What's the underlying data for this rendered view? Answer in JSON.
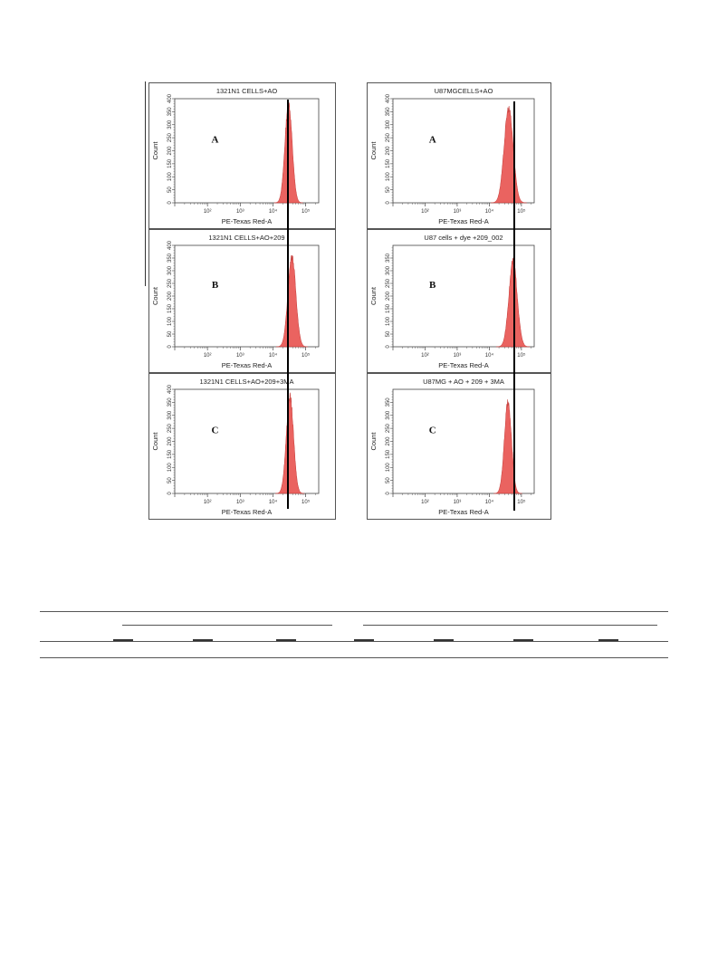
{
  "colors": {
    "fill": "#e8524f",
    "fill_light": "#f4a8a4",
    "frame": "#555555",
    "cursor": "#000000"
  },
  "chart_data": [
    {
      "type": "area",
      "title": "1321N1 CELLS+AO",
      "panel_letter": "A",
      "xlabel": "PE-Texas Red-A",
      "ylabel": "Count",
      "xscale": "log",
      "xlim": [
        10,
        250000
      ],
      "ylim": [
        0,
        400
      ],
      "xticks": [
        "10²",
        "10³",
        "10⁴",
        "10⁵"
      ],
      "yticks": [
        "0",
        "50",
        "100",
        "150",
        "200",
        "250",
        "300",
        "350",
        "400"
      ],
      "peak": {
        "center": 30000,
        "height": 390,
        "width_log": 0.11
      }
    },
    {
      "type": "area",
      "title": "1321N1 CELLS+AO+209",
      "panel_letter": "B",
      "xlabel": "PE-Texas Red-A",
      "ylabel": "Count",
      "xscale": "log",
      "xlim": [
        10,
        250000
      ],
      "ylim": [
        0,
        400
      ],
      "xticks": [
        "10²",
        "10³",
        "10⁴",
        "10⁵"
      ],
      "yticks": [
        "0",
        "50",
        "100",
        "150",
        "200",
        "250",
        "300",
        "350",
        "400"
      ],
      "peak": {
        "center": 38000,
        "height": 365,
        "width_log": 0.12
      }
    },
    {
      "type": "area",
      "title": "1321N1 CELLS+AO+209+3MA",
      "panel_letter": "C",
      "xlabel": "PE-Texas Red-A",
      "ylabel": "Count",
      "xscale": "log",
      "xlim": [
        10,
        250000
      ],
      "ylim": [
        0,
        400
      ],
      "xticks": [
        "10²",
        "10³",
        "10⁴",
        "10⁵"
      ],
      "yticks": [
        "0",
        "50",
        "100",
        "150",
        "200",
        "250",
        "300",
        "350",
        "400"
      ],
      "peak": {
        "center": 33000,
        "height": 380,
        "width_log": 0.11
      }
    },
    {
      "type": "area",
      "title": "U87MGCELLS+AO",
      "panel_letter": "A",
      "xlabel": "PE-Texas Red-A",
      "ylabel": "Count",
      "xscale": "log",
      "xlim": [
        10,
        250000
      ],
      "ylim": [
        0,
        400
      ],
      "xticks": [
        "10²",
        "10³",
        "10⁴",
        "10⁵"
      ],
      "yticks": [
        "0",
        "50",
        "100",
        "150",
        "200",
        "250",
        "300",
        "350",
        "400"
      ],
      "peak": {
        "center": 40000,
        "height": 370,
        "width_log": 0.14
      }
    },
    {
      "type": "area",
      "title": "U87 cells + dye +209_002",
      "panel_letter": "B",
      "xlabel": "PE-Texas Red-A",
      "ylabel": "Count",
      "xscale": "log",
      "xlim": [
        10,
        250000
      ],
      "ylim": [
        0,
        400
      ],
      "xticks": [
        "10²",
        "10³",
        "10⁴",
        "10⁵"
      ],
      "yticks": [
        "0",
        "50",
        "100",
        "150",
        "200",
        "250",
        "300",
        "350"
      ],
      "peak": {
        "center": 55000,
        "height": 345,
        "width_log": 0.13
      }
    },
    {
      "type": "area",
      "title": "U87MG + AO + 209 + 3MA",
      "panel_letter": "C",
      "xlabel": "PE-Texas Red-A",
      "ylabel": "Count",
      "xscale": "log",
      "xlim": [
        10,
        250000
      ],
      "ylim": [
        0,
        400
      ],
      "xticks": [
        "10²",
        "10³",
        "10⁴",
        "10⁵"
      ],
      "yticks": [
        "0",
        "50",
        "100",
        "150",
        "200",
        "250",
        "300",
        "350"
      ],
      "peak": {
        "center": 38000,
        "height": 355,
        "width_log": 0.11
      }
    }
  ]
}
